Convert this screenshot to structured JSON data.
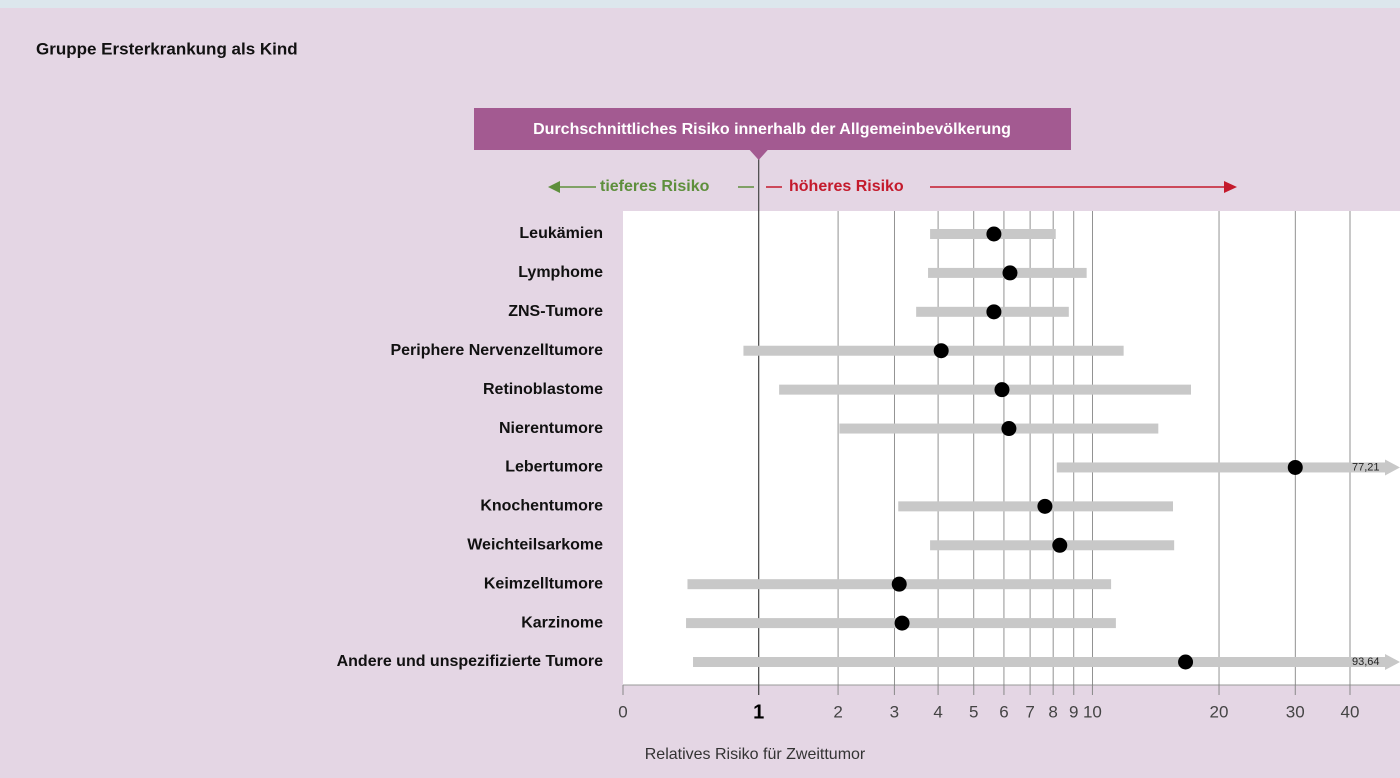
{
  "chart_data": {
    "type": "forest",
    "title": "Gruppe Ersterkrankung als Kind",
    "reference_label": "Durchschnittliches Risiko innerhalb der Allgemeinbevölkerung",
    "lower_label": "tieferes Risiko",
    "higher_label": "höheres Risiko",
    "lower_color": "#5e8f3c",
    "higher_color": "#c41a2c",
    "reference_color": "#a35a91",
    "x_label": "Relatives Risiko für Zweittumor",
    "xscale": "log1p",
    "xlim": [
      0,
      40
    ],
    "xticks": [
      0,
      1,
      2,
      3,
      4,
      5,
      6,
      7,
      8,
      9,
      10,
      20,
      30,
      40
    ],
    "reference": 1,
    "grid": true,
    "categories": [
      "Leukämien",
      "Lymphome",
      "ZNS-Tumore",
      "Periphere Nervenzelltumore",
      "Retinoblastome",
      "Nierentumore",
      "Lebertumore",
      "Knochentumore",
      "Weichteilsarkome",
      "Keimzelltumore",
      "Karzinome",
      "Andere und unspezifizierte Tumore"
    ],
    "series": [
      {
        "color": "#000000",
        "interval_color": "#c8c8c8",
        "values": [
          5.65,
          6.22,
          5.65,
          4.08,
          5.93,
          6.18,
          30.0,
          7.63,
          8.31,
          3.1,
          3.16,
          16.7
        ],
        "lower": [
          3.8,
          3.75,
          3.47,
          0.85,
          1.22,
          2.02,
          8.17,
          3.08,
          3.8,
          0.39,
          0.38,
          0.43
        ],
        "upper": [
          8.12,
          9.68,
          8.75,
          11.9,
          17.2,
          14.4,
          77.21,
          15.6,
          15.7,
          11.1,
          11.4,
          93.64
        ],
        "upper_labels": [
          null,
          null,
          null,
          null,
          null,
          null,
          "77,21",
          null,
          null,
          null,
          null,
          "93,64"
        ]
      }
    ]
  }
}
